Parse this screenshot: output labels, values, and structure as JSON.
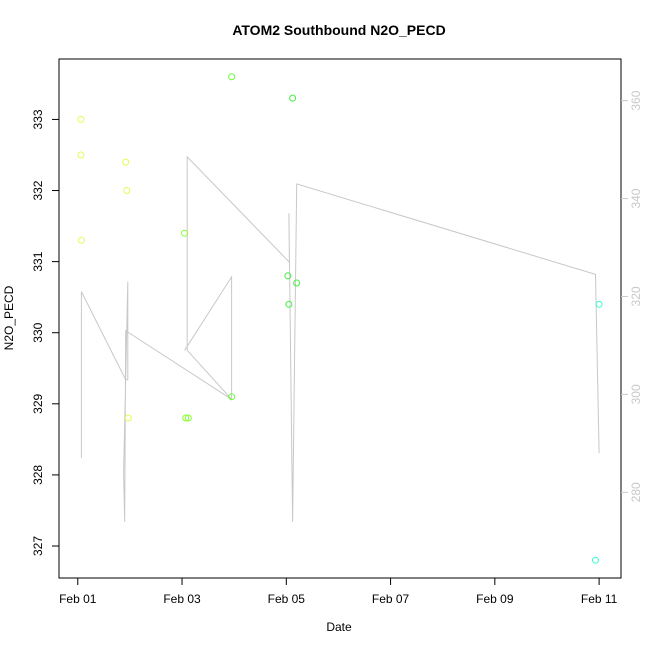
{
  "chart_data": {
    "type": "scatter",
    "title": "ATOM2 Southbound N2O_PECD",
    "xlabel": "Date",
    "ylabel": "N2O_PECD",
    "x_ticks": [
      "Feb 01",
      "Feb 03",
      "Feb 05",
      "Feb 07",
      "Feb 09",
      "Feb 11"
    ],
    "x_tick_values": [
      1,
      3,
      5,
      7,
      9,
      11
    ],
    "xlim": [
      0.64,
      11.42
    ],
    "ylim": [
      326.55,
      333.85
    ],
    "y_ticks": [
      327,
      328,
      329,
      330,
      331,
      332,
      333
    ],
    "y2lim": [
      262.5,
      368.5
    ],
    "y2_ticks": [
      280,
      300,
      320,
      340,
      360
    ],
    "grid": false,
    "points": [
      {
        "x": 1.06,
        "y": 333.0,
        "color": "#ddff55"
      },
      {
        "x": 1.06,
        "y": 332.5,
        "color": "#ddff55"
      },
      {
        "x": 1.07,
        "y": 331.3,
        "color": "#ddff55"
      },
      {
        "x": 1.92,
        "y": 332.4,
        "color": "#ddff55"
      },
      {
        "x": 1.94,
        "y": 332.0,
        "color": "#ddff55"
      },
      {
        "x": 1.97,
        "y": 328.8,
        "color": "#ddff55"
      },
      {
        "x": 3.05,
        "y": 331.4,
        "color": "#88ff33"
      },
      {
        "x": 3.07,
        "y": 328.8,
        "color": "#88ff33"
      },
      {
        "x": 3.12,
        "y": 328.8,
        "color": "#88ff33"
      },
      {
        "x": 3.95,
        "y": 333.6,
        "color": "#66ff33"
      },
      {
        "x": 3.95,
        "y": 329.1,
        "color": "#66ff33"
      },
      {
        "x": 5.03,
        "y": 330.8,
        "color": "#44ee44"
      },
      {
        "x": 5.05,
        "y": 330.4,
        "color": "#44ee44"
      },
      {
        "x": 5.12,
        "y": 333.3,
        "color": "#44ee44"
      },
      {
        "x": 5.2,
        "y": 330.7,
        "color": "#44ee44"
      },
      {
        "x": 10.93,
        "y": 326.8,
        "color": "#33ffcc"
      },
      {
        "x": 11.0,
        "y": 330.4,
        "color": "#33ffcc"
      }
    ],
    "line_series": {
      "axis": "right",
      "color": "#c8c8c8",
      "x": [
        1.07,
        1.07,
        1.92,
        1.96,
        1.96,
        1.88,
        1.9,
        1.92,
        3.95,
        3.95,
        3.05,
        3.05,
        3.95,
        3.95,
        3.1,
        3.1,
        5.06,
        5.06,
        5.05,
        5.12,
        5.12,
        5.2,
        10.93,
        11.0
      ],
      "y": [
        287.0,
        321.0,
        303.0,
        303.0,
        323.0,
        284.0,
        274.0,
        313.0,
        299.0,
        324.0,
        309.0,
        309.0,
        324.0,
        299.0,
        309.0,
        348.5,
        327.0,
        327.0,
        337.0,
        274.0,
        274.0,
        343.0,
        324.5,
        288.0
      ]
    }
  }
}
